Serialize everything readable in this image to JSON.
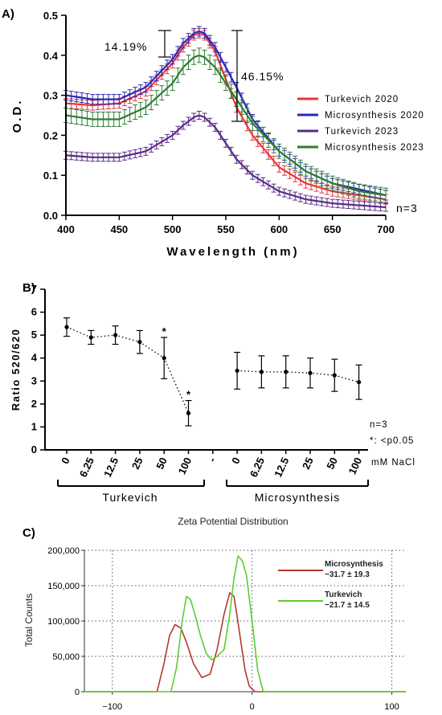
{
  "panels": {
    "a": "A)",
    "b": "B)",
    "c": "C)"
  },
  "chart_data": [
    {
      "id": "a",
      "type": "line",
      "xlabel": "Wavelength (nm)",
      "ylabel": "O.D.",
      "xlim": [
        400,
        700
      ],
      "ylim": [
        0,
        0.5
      ],
      "xticks": [
        "400",
        "450",
        "500",
        "550",
        "600",
        "650",
        "700"
      ],
      "yticks": [
        "0.0",
        "0.1",
        "0.2",
        "0.3",
        "0.4",
        "0.5"
      ],
      "legend_position": "right",
      "annotations": {
        "left_pct": "14.19%",
        "right_pct": "46.15%",
        "n": "n=3"
      },
      "series": [
        {
          "name": "Turkevich 2020",
          "color": "#e8343a",
          "x": [
            400,
            425,
            450,
            475,
            500,
            510,
            520,
            525,
            530,
            540,
            550,
            560,
            575,
            600,
            625,
            650,
            675,
            700
          ],
          "y": [
            0.28,
            0.275,
            0.28,
            0.31,
            0.38,
            0.42,
            0.45,
            0.455,
            0.45,
            0.41,
            0.34,
            0.27,
            0.2,
            0.12,
            0.08,
            0.06,
            0.05,
            0.04
          ],
          "err": 0.012
        },
        {
          "name": "Microsynthesis 2020",
          "color": "#2a2ab8",
          "x": [
            400,
            425,
            450,
            475,
            500,
            510,
            520,
            525,
            530,
            540,
            550,
            560,
            575,
            600,
            625,
            650,
            675,
            700
          ],
          "y": [
            0.3,
            0.29,
            0.29,
            0.32,
            0.39,
            0.43,
            0.455,
            0.46,
            0.455,
            0.42,
            0.37,
            0.32,
            0.24,
            0.16,
            0.11,
            0.08,
            0.065,
            0.05
          ],
          "err": 0.012
        },
        {
          "name": "Turkevich 2023",
          "color": "#5a2a88",
          "x": [
            400,
            425,
            450,
            475,
            500,
            510,
            520,
            525,
            530,
            540,
            550,
            560,
            575,
            600,
            625,
            650,
            675,
            700
          ],
          "y": [
            0.15,
            0.145,
            0.145,
            0.16,
            0.2,
            0.225,
            0.245,
            0.25,
            0.245,
            0.22,
            0.18,
            0.14,
            0.1,
            0.06,
            0.04,
            0.03,
            0.025,
            0.02
          ],
          "err": 0.01
        },
        {
          "name": "Microsynthesis 2023",
          "color": "#2e7d32",
          "x": [
            400,
            425,
            450,
            475,
            500,
            510,
            520,
            525,
            530,
            540,
            550,
            560,
            575,
            600,
            625,
            650,
            675,
            700
          ],
          "y": [
            0.25,
            0.24,
            0.24,
            0.27,
            0.33,
            0.37,
            0.395,
            0.4,
            0.395,
            0.37,
            0.33,
            0.29,
            0.23,
            0.16,
            0.11,
            0.08,
            0.06,
            0.05
          ],
          "err": 0.018
        }
      ]
    },
    {
      "id": "b",
      "type": "scatter",
      "ylabel": "Ratio 520/620",
      "ylim": [
        0,
        7
      ],
      "yticks": [
        "0",
        "1",
        "2",
        "3",
        "4",
        "5",
        "6",
        "7"
      ],
      "categories": [
        "0",
        "6.25",
        "12.5",
        "25",
        "50",
        "100",
        "-",
        "0",
        "6.25",
        "12.5",
        "25",
        "50",
        "100"
      ],
      "unit_label": "mM NaCl",
      "groups": [
        "Turkevich",
        "Microsynthesis"
      ],
      "annotations": {
        "n": "n=3",
        "sig": "*: <p0.05",
        "star": "*"
      },
      "series": [
        {
          "name": "Turkevich",
          "indices": [
            0,
            1,
            2,
            3,
            4,
            5
          ],
          "values": [
            5.35,
            4.9,
            5.0,
            4.7,
            4.0,
            1.6
          ],
          "err": [
            0.4,
            0.3,
            0.4,
            0.5,
            0.9,
            0.55
          ],
          "significant": [
            false,
            false,
            false,
            false,
            true,
            true
          ]
        },
        {
          "name": "Microsynthesis",
          "indices": [
            7,
            8,
            9,
            10,
            11,
            12
          ],
          "values": [
            3.45,
            3.4,
            3.4,
            3.35,
            3.25,
            2.95
          ],
          "err": [
            0.8,
            0.7,
            0.7,
            0.65,
            0.7,
            0.75
          ],
          "significant": [
            false,
            false,
            false,
            false,
            false,
            false
          ]
        }
      ]
    },
    {
      "id": "c",
      "type": "line",
      "title": "Zeta Potential Distribution",
      "ylabel": "Total Counts",
      "xlim": [
        -120,
        110
      ],
      "ylim": [
        0,
        200000
      ],
      "xticks": [
        "-100",
        "0",
        "100"
      ],
      "yticks": [
        "0",
        "50,000",
        "100,000",
        "150,000",
        "200,000"
      ],
      "grid": true,
      "legend_position": "top-right",
      "series": [
        {
          "name": "Microsynthesis",
          "stat": "−31.7 ± 19.3",
          "color": "#b5382e",
          "x": [
            -120,
            -68,
            -63,
            -59,
            -55,
            -51,
            -47,
            -42,
            -36,
            -30,
            -25,
            -20,
            -16,
            -13,
            -11,
            -8,
            -5,
            -2,
            2,
            110
          ],
          "y": [
            0,
            0,
            40000,
            80000,
            95000,
            90000,
            70000,
            40000,
            20000,
            25000,
            60000,
            110000,
            140000,
            135000,
            110000,
            70000,
            30000,
            8000,
            0,
            0
          ]
        },
        {
          "name": "Turkevich",
          "stat": "−21.7 ± 14.5",
          "color": "#5ccd2e",
          "x": [
            -120,
            -58,
            -54,
            -50,
            -47,
            -44,
            -41,
            -37,
            -33,
            -29,
            -25,
            -20,
            -16,
            -13,
            -10,
            -7,
            -4,
            0,
            4,
            8,
            110
          ],
          "y": [
            0,
            0,
            35000,
            100000,
            135000,
            130000,
            110000,
            80000,
            55000,
            45000,
            50000,
            60000,
            110000,
            160000,
            192000,
            185000,
            165000,
            100000,
            30000,
            0,
            0
          ]
        }
      ]
    }
  ]
}
